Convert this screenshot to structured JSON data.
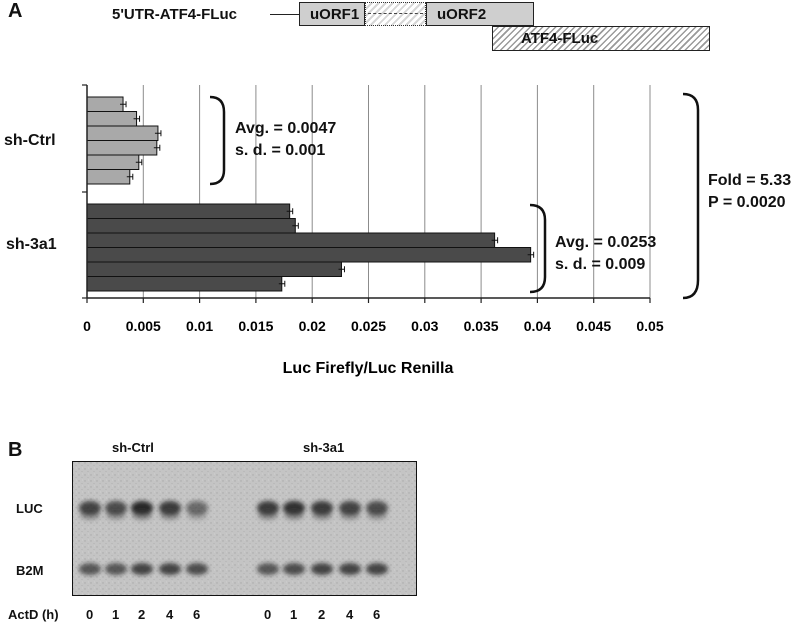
{
  "panel_a": {
    "letter": "A",
    "construct_label": "5'UTR-ATF4-FLuc",
    "boxes": {
      "uorf1": "uORF1",
      "uorf2": "uORF2",
      "atf4": "ATF4-FLuc"
    },
    "ctrl_stats": {
      "avg": "Avg. = 0.0047",
      "sd": "s. d. = 0.001"
    },
    "kd_stats": {
      "avg": "Avg. = 0.0253",
      "sd": "s. d. = 0.009"
    },
    "fold_stats": {
      "fold": "Fold = 5.33",
      "p": "P = 0.0020"
    }
  },
  "chart_data": {
    "type": "bar",
    "orientation": "horizontal",
    "xlabel": "Luc Firefly/Luc Renilla",
    "xlim": [
      0,
      0.05
    ],
    "xticks": [
      "0",
      "0.005",
      "0.01",
      "0.015",
      "0.02",
      "0.025",
      "0.03",
      "0.035",
      "0.04",
      "0.045",
      "0.05"
    ],
    "grid": true,
    "groups": [
      {
        "name": "sh-Ctrl",
        "color": "#a9a9a9",
        "values": [
          0.0032,
          0.0044,
          0.0063,
          0.0062,
          0.0046,
          0.0038
        ]
      },
      {
        "name": "sh-3a1",
        "color": "#4a4a4a",
        "values": [
          0.018,
          0.0185,
          0.0362,
          0.0394,
          0.0226,
          0.0173
        ]
      }
    ]
  },
  "panel_b": {
    "letter": "B",
    "ctrl_title": "sh-Ctrl",
    "kd_title": "sh-3a1",
    "row_luc": "LUC",
    "row_b2m": "B2M",
    "actd_label": "ActD (h)",
    "timepoints": [
      "0",
      "1",
      "2",
      "4",
      "6"
    ]
  }
}
